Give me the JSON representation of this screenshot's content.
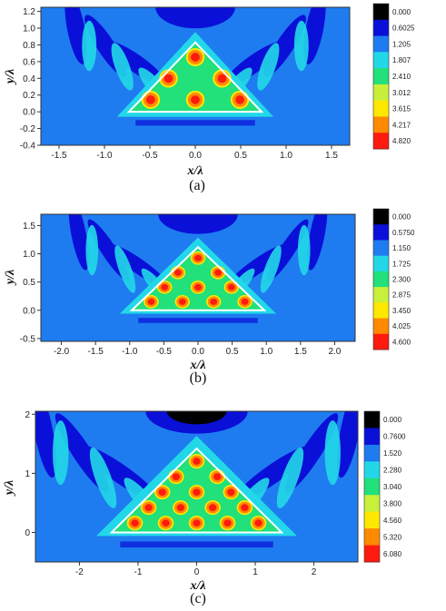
{
  "chart_data": [
    {
      "type": "heatmap",
      "caption": "(a)",
      "xlabel": "x/λ",
      "ylabel": "y/λ",
      "xlim": [
        -1.7,
        1.7
      ],
      "ylim": [
        -0.4,
        1.25
      ],
      "xticks": [
        "-1.5",
        "-1.0",
        "-0.5",
        "0.0",
        "0.5",
        "1.0",
        "1.5"
      ],
      "xtick_values": [
        -1.5,
        -1.0,
        -0.5,
        0.0,
        0.5,
        1.0,
        1.5
      ],
      "yticks": [
        "-0.4",
        "-0.2",
        "0.0",
        "0.2",
        "0.4",
        "0.6",
        "0.8",
        "1.0",
        "1.2"
      ],
      "ytick_values": [
        -0.4,
        -0.2,
        0.0,
        0.2,
        0.4,
        0.6,
        0.8,
        1.0,
        1.2
      ],
      "colorbar_levels": [
        "0.000",
        "0.6025",
        "1.205",
        "1.807",
        "2.410",
        "3.012",
        "3.615",
        "4.217",
        "4.820"
      ],
      "colorbar_colors": [
        "#000000",
        "#0a10d8",
        "#1e7cf0",
        "#22d8e8",
        "#22e07a",
        "#c8f03a",
        "#ffe800",
        "#ff8a00",
        "#ff1a10"
      ],
      "triangle": {
        "base_y": 0.0,
        "half_width": 0.73,
        "apex_y": 0.83
      }
    },
    {
      "type": "heatmap",
      "caption": "(b)",
      "xlabel": "x/λ",
      "ylabel": "y/λ",
      "xlim": [
        -2.3,
        2.3
      ],
      "ylim": [
        -0.55,
        1.7
      ],
      "xticks": [
        "-2.0",
        "-1.5",
        "-1.0",
        "-0.5",
        "0.0",
        "0.5",
        "1.0",
        "1.5",
        "2.0"
      ],
      "xtick_values": [
        -2.0,
        -1.5,
        -1.0,
        -0.5,
        0.0,
        0.5,
        1.0,
        1.5,
        2.0
      ],
      "yticks": [
        "-0.5",
        "0.0",
        "0.5",
        "1.0",
        "1.5"
      ],
      "ytick_values": [
        -0.5,
        0.0,
        0.5,
        1.0,
        1.5
      ],
      "colorbar_levels": [
        "0.000",
        "0.5750",
        "1.150",
        "1.725",
        "2.300",
        "2.875",
        "3.450",
        "4.025",
        "4.600"
      ],
      "colorbar_colors": [
        "#000000",
        "#0a10d8",
        "#1e7cf0",
        "#22d8e8",
        "#22e07a",
        "#c8f03a",
        "#ffe800",
        "#ff8a00",
        "#ff1a10"
      ],
      "triangle": {
        "base_y": 0.0,
        "half_width": 0.97,
        "apex_y": 1.12
      }
    },
    {
      "type": "heatmap",
      "caption": "(c)",
      "xlabel": "x/λ",
      "ylabel": "y/λ",
      "xlim": [
        -2.75,
        2.75
      ],
      "ylim": [
        -0.5,
        2.05
      ],
      "xticks": [
        "-2",
        "-1",
        "0",
        "1",
        "2"
      ],
      "xtick_values": [
        -2,
        -1,
        0,
        1,
        2
      ],
      "yticks": [
        "0",
        "1",
        "2"
      ],
      "ytick_values": [
        0,
        1,
        2
      ],
      "colorbar_levels": [
        "0.000",
        "0.7600",
        "1.520",
        "2.280",
        "3.040",
        "3.800",
        "4.560",
        "5.320",
        "6.080"
      ],
      "colorbar_colors": [
        "#000000",
        "#0a10d8",
        "#1e7cf0",
        "#22d8e8",
        "#22e07a",
        "#c8f03a",
        "#ffe800",
        "#ff8a00",
        "#ff1a10"
      ],
      "triangle": {
        "base_y": 0.0,
        "half_width": 1.45,
        "apex_y": 1.42
      }
    }
  ]
}
